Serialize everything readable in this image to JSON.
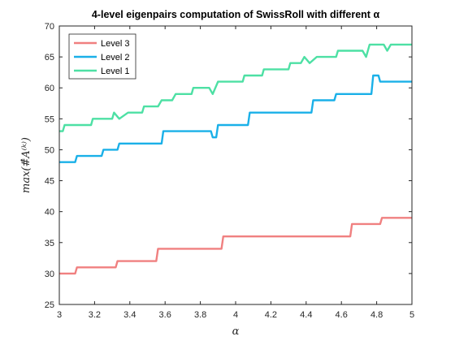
{
  "chart_data": {
    "type": "line",
    "title": "4-level eigenpairs computation of SwissRoll with different α",
    "xlabel": "α",
    "ylabel": "max(#̂A⁽ᵏ⁾)",
    "xlim": [
      3,
      5
    ],
    "ylim": [
      25,
      70
    ],
    "xticks": [
      "3",
      "3.2",
      "3.4",
      "3.6",
      "3.8",
      "4",
      "4.2",
      "4.4",
      "4.6",
      "4.8",
      "5"
    ],
    "yticks": [
      "25",
      "30",
      "35",
      "40",
      "45",
      "50",
      "55",
      "60",
      "65",
      "70"
    ],
    "grid": false,
    "legend_position": "top-left",
    "series": [
      {
        "name": "Level 3",
        "color": "#f08080",
        "points": [
          [
            3.0,
            30
          ],
          [
            3.09,
            30
          ],
          [
            3.1,
            31
          ],
          [
            3.32,
            31
          ],
          [
            3.33,
            32
          ],
          [
            3.55,
            32
          ],
          [
            3.56,
            34
          ],
          [
            3.92,
            34
          ],
          [
            3.93,
            36
          ],
          [
            4.65,
            36
          ],
          [
            4.66,
            38
          ],
          [
            4.82,
            38
          ],
          [
            4.83,
            39
          ],
          [
            5.0,
            39
          ]
        ]
      },
      {
        "name": "Level 2",
        "color": "#1ab0e8",
        "points": [
          [
            3.0,
            48
          ],
          [
            3.09,
            48
          ],
          [
            3.1,
            49
          ],
          [
            3.24,
            49
          ],
          [
            3.25,
            50
          ],
          [
            3.33,
            50
          ],
          [
            3.34,
            51
          ],
          [
            3.58,
            51
          ],
          [
            3.59,
            53
          ],
          [
            3.86,
            53
          ],
          [
            3.87,
            52
          ],
          [
            3.89,
            52
          ],
          [
            3.9,
            54
          ],
          [
            4.07,
            54
          ],
          [
            4.08,
            56
          ],
          [
            4.43,
            56
          ],
          [
            4.44,
            58
          ],
          [
            4.56,
            58
          ],
          [
            4.57,
            59
          ],
          [
            4.77,
            59
          ],
          [
            4.78,
            62
          ],
          [
            4.81,
            62
          ],
          [
            4.82,
            61
          ],
          [
            5.0,
            61
          ]
        ]
      },
      {
        "name": "Level 1",
        "color": "#4de0a4",
        "points": [
          [
            3.0,
            53
          ],
          [
            3.02,
            53
          ],
          [
            3.03,
            54
          ],
          [
            3.18,
            54
          ],
          [
            3.19,
            55
          ],
          [
            3.3,
            55
          ],
          [
            3.31,
            56
          ],
          [
            3.34,
            55
          ],
          [
            3.39,
            56
          ],
          [
            3.47,
            56
          ],
          [
            3.48,
            57
          ],
          [
            3.56,
            57
          ],
          [
            3.58,
            58
          ],
          [
            3.64,
            58
          ],
          [
            3.66,
            59
          ],
          [
            3.75,
            59
          ],
          [
            3.76,
            60
          ],
          [
            3.85,
            60
          ],
          [
            3.87,
            59
          ],
          [
            3.9,
            61
          ],
          [
            4.04,
            61
          ],
          [
            4.05,
            62
          ],
          [
            4.15,
            62
          ],
          [
            4.16,
            63
          ],
          [
            4.3,
            63
          ],
          [
            4.31,
            64
          ],
          [
            4.37,
            64
          ],
          [
            4.39,
            65
          ],
          [
            4.42,
            64
          ],
          [
            4.46,
            65
          ],
          [
            4.57,
            65
          ],
          [
            4.58,
            66
          ],
          [
            4.72,
            66
          ],
          [
            4.74,
            65
          ],
          [
            4.76,
            67
          ],
          [
            4.84,
            67
          ],
          [
            4.86,
            66
          ],
          [
            4.88,
            67
          ],
          [
            5.0,
            67
          ]
        ]
      }
    ]
  }
}
